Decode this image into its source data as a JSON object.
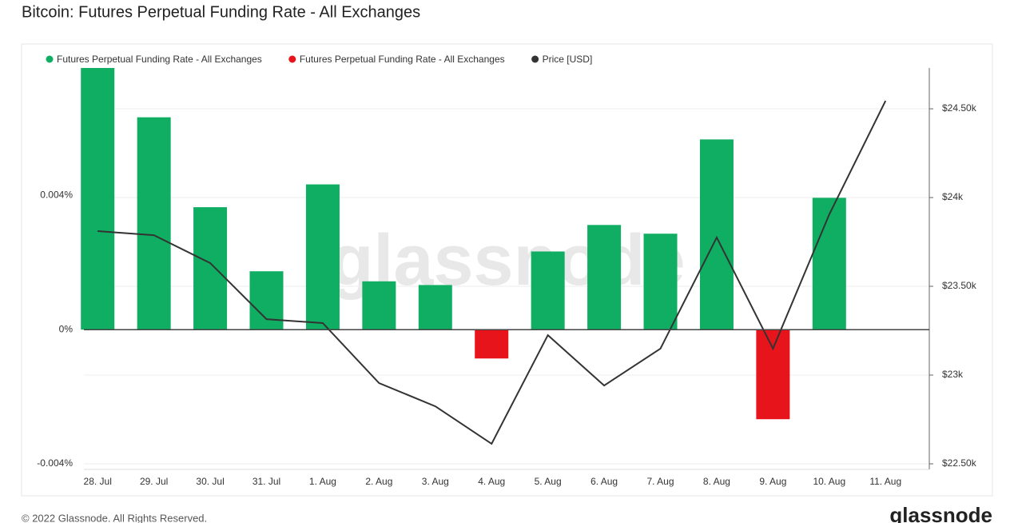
{
  "chart_data": {
    "type": "bar",
    "title": "Bitcoin: Futures Perpetual Funding Rate - All Exchanges",
    "watermark": "glassnode",
    "footer": "© 2022 Glassnode. All Rights Reserved.",
    "logo": "glassnode",
    "categories": [
      "28. Jul",
      "29. Jul",
      "30. Jul",
      "31. Jul",
      "1. Aug",
      "2. Aug",
      "3. Aug",
      "4. Aug",
      "5. Aug",
      "6. Aug",
      "7. Aug",
      "8. Aug",
      "9. Aug",
      "10. Aug",
      "11. Aug"
    ],
    "series": [
      {
        "name": "Futures Perpetual Funding Rate - All Exchanges",
        "color": "#0fae63",
        "values": [
          0.0078,
          0.00633,
          0.00365,
          0.00174,
          0.00433,
          0.00144,
          0.00133,
          null,
          0.00233,
          0.00312,
          0.00286,
          0.00567,
          null,
          0.00393,
          null
        ]
      },
      {
        "name": "Futures Perpetual Funding Rate - All Exchanges",
        "color": "#e8141b",
        "values": [
          null,
          null,
          null,
          null,
          null,
          null,
          null,
          -0.00086,
          null,
          null,
          null,
          null,
          -0.00267,
          null,
          null
        ]
      },
      {
        "name": "Price [USD]",
        "color": "#333333",
        "type": "line",
        "axis": "y2",
        "values": [
          23811,
          23788,
          23631,
          23315,
          23293,
          22955,
          22824,
          22613,
          23225,
          22941,
          23149,
          23775,
          23149,
          23905,
          24545
        ]
      }
    ],
    "ylim": [
      -0.004,
      0.0078
    ],
    "yticks": [
      {
        "value": -0.004,
        "label": "-0.004%"
      },
      {
        "value": 0,
        "label": "0%"
      },
      {
        "value": 0.004,
        "label": "0.004%"
      }
    ],
    "y2lim": [
      22500,
      24730
    ],
    "y2ticks": [
      {
        "value": 22500,
        "label": "$22.50k"
      },
      {
        "value": 23000,
        "label": "$23k"
      },
      {
        "value": 23500,
        "label": "$23.50k"
      },
      {
        "value": 24000,
        "label": "$24k"
      },
      {
        "value": 24500,
        "label": "$24.50k"
      }
    ],
    "grid": true,
    "legend": "top"
  }
}
